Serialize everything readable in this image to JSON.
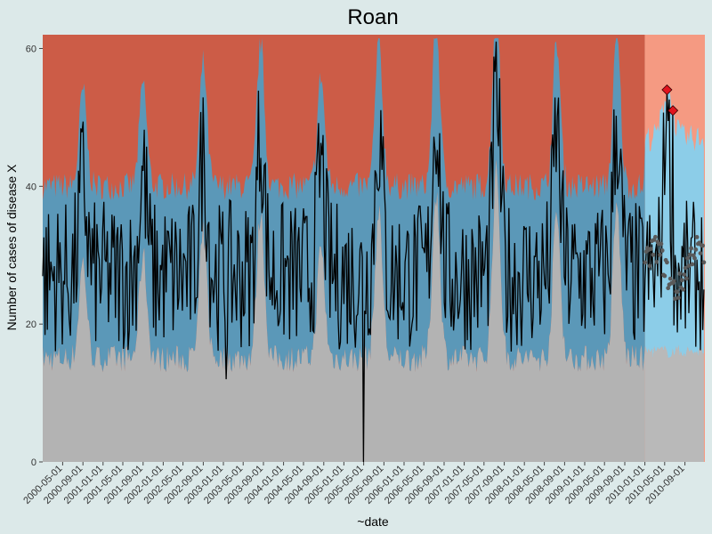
{
  "chart_data": {
    "type": "line",
    "title": "Roan",
    "xlabel": "~date",
    "ylabel": "Number of cases of disease X",
    "ylim": [
      0,
      62
    ],
    "xlim": [
      "2000-01-01",
      "2010-12-31"
    ],
    "grid": false,
    "y_ticks": [
      0,
      20,
      40,
      60
    ],
    "x_ticks": [
      "2000-05-01",
      "2000-09-01",
      "2001-01-01",
      "2001-05-01",
      "2001-09-01",
      "2002-01-01",
      "2002-05-01",
      "2002-09-01",
      "2003-01-01",
      "2003-05-01",
      "2003-09-01",
      "2004-01-01",
      "2004-05-01",
      "2004-09-01",
      "2005-01-01",
      "2005-05-01",
      "2005-09-01",
      "2006-01-01",
      "2006-05-01",
      "2006-09-01",
      "2007-01-01",
      "2007-05-01",
      "2007-09-01",
      "2008-01-01",
      "2008-05-01",
      "2008-09-01",
      "2009-01-01",
      "2009-05-01",
      "2009-09-01",
      "2010-01-01",
      "2010-05-01",
      "2010-09-01"
    ],
    "forecast_start": "2010-01-01",
    "colors": {
      "background": "#dce9e9",
      "historic_upper": "#cc5c47",
      "historic_band": "#5b98b8",
      "historic_lower": "#b3b3b3",
      "forecast_upper": "#f59a82",
      "forecast_band": "#8ccde8",
      "forecast_lower": "#b9b9b9",
      "observed_line": "#000000",
      "expected_points": "#5a5a5a",
      "alarm_points": "#e0141e"
    },
    "seasonal_peaks": [
      {
        "date": "2000-09-01",
        "value": 47
      },
      {
        "date": "2001-09-01",
        "value": 48
      },
      {
        "date": "2002-09-01",
        "value": 51
      },
      {
        "date": "2003-08-15",
        "value": 54
      },
      {
        "date": "2004-08-15",
        "value": 49
      },
      {
        "date": "2005-08-01",
        "value": 54
      },
      {
        "date": "2006-07-15",
        "value": 57
      },
      {
        "date": "2007-07-15",
        "value": 60
      },
      {
        "date": "2008-07-15",
        "value": 54
      },
      {
        "date": "2009-07-15",
        "value": 55
      },
      {
        "date": "2010-05-15",
        "value": 54
      }
    ],
    "series": [
      {
        "name": "",
        "kind": "observed_weekly_cases"
      },
      {
        "name": "",
        "kind": "expected_forecast_2010"
      },
      {
        "name": "",
        "kind": "alarms"
      }
    ],
    "alarms": [
      {
        "date": "2010-05-15",
        "value": 54
      },
      {
        "date": "2010-06-20",
        "value": 51
      }
    ],
    "notable_points": [
      {
        "date": "2003-01-15",
        "value": 12
      },
      {
        "date": "2005-05-01",
        "value": 0
      }
    ]
  }
}
